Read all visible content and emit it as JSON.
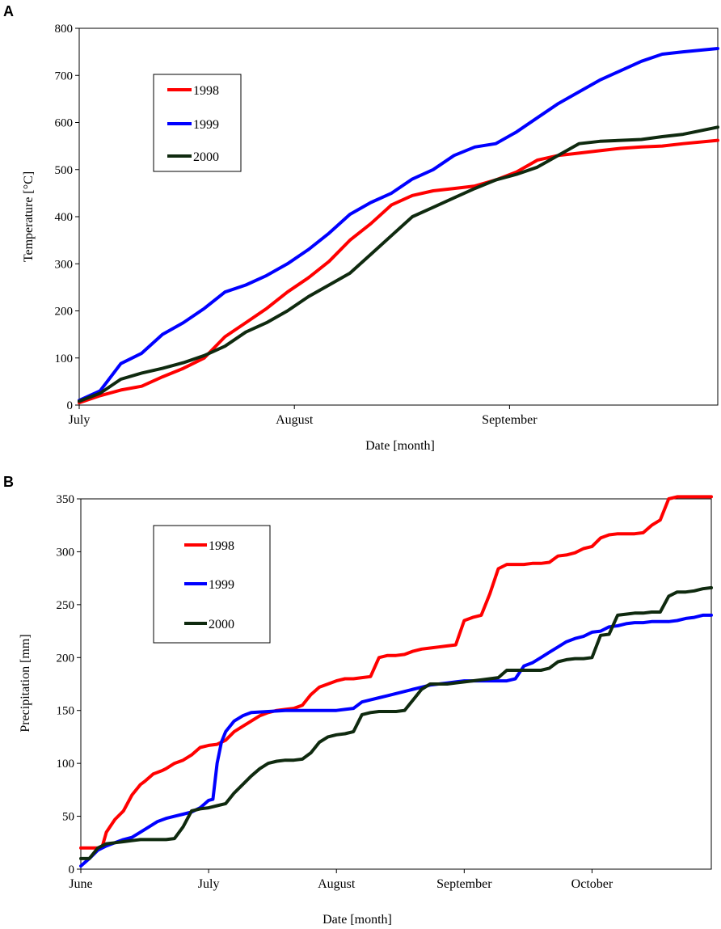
{
  "colors": {
    "1998": "#ff0000",
    "1999": "#0000ff",
    "2000": "#0f2a0f",
    "axis": "#000000"
  },
  "chart_data": [
    {
      "panel": "A",
      "type": "line",
      "xlabel": "Date [month]",
      "ylabel": "Temperature [°C]",
      "ylim": [
        0,
        800
      ],
      "yticks": [
        "0",
        "100",
        "200",
        "300",
        "400",
        "500",
        "600",
        "700",
        "800"
      ],
      "xlim": [
        0,
        92
      ],
      "xticks": [
        {
          "label": "July",
          "x": 0
        },
        {
          "label": "August",
          "x": 31
        },
        {
          "label": "September",
          "x": 62
        }
      ],
      "legend": [
        "1998",
        "1999",
        "2000"
      ],
      "series": [
        {
          "name": "1998",
          "x": [
            0,
            3,
            6,
            9,
            12,
            15,
            18,
            21,
            24,
            27,
            30,
            33,
            36,
            39,
            42,
            45,
            48,
            51,
            54,
            57,
            60,
            63,
            66,
            69,
            72,
            75,
            78,
            81,
            84,
            87,
            92
          ],
          "y": [
            5,
            20,
            32,
            40,
            60,
            78,
            100,
            145,
            175,
            205,
            240,
            270,
            305,
            350,
            385,
            425,
            445,
            455,
            460,
            465,
            478,
            495,
            520,
            530,
            535,
            540,
            545,
            548,
            550,
            555,
            562
          ]
        },
        {
          "name": "1999",
          "x": [
            0,
            3,
            6,
            9,
            12,
            15,
            18,
            21,
            24,
            27,
            30,
            33,
            36,
            39,
            42,
            45,
            48,
            51,
            54,
            57,
            60,
            63,
            66,
            69,
            72,
            75,
            78,
            81,
            84,
            87,
            92
          ],
          "y": [
            10,
            30,
            88,
            110,
            150,
            175,
            205,
            240,
            255,
            275,
            300,
            330,
            365,
            405,
            430,
            450,
            480,
            500,
            530,
            548,
            555,
            580,
            610,
            640,
            665,
            690,
            710,
            730,
            745,
            750,
            757
          ]
        },
        {
          "name": "2000",
          "x": [
            0,
            3,
            6,
            9,
            12,
            15,
            18,
            21,
            24,
            27,
            30,
            33,
            36,
            39,
            42,
            45,
            48,
            51,
            54,
            57,
            60,
            63,
            66,
            69,
            72,
            75,
            78,
            81,
            84,
            87,
            92
          ],
          "y": [
            8,
            25,
            55,
            68,
            78,
            90,
            105,
            125,
            155,
            175,
            200,
            230,
            255,
            280,
            320,
            360,
            400,
            420,
            440,
            460,
            478,
            490,
            505,
            530,
            555,
            560,
            562,
            564,
            570,
            575,
            590
          ]
        }
      ]
    },
    {
      "panel": "B",
      "type": "line",
      "xlabel": "Date [month]",
      "ylabel": "Precipitation [mm]",
      "ylim": [
        0,
        350
      ],
      "yticks": [
        "0",
        "50",
        "100",
        "150",
        "200",
        "250",
        "300",
        "350"
      ],
      "xlim": [
        0,
        148
      ],
      "xticks": [
        {
          "label": "June",
          "x": 0
        },
        {
          "label": "July",
          "x": 30
        },
        {
          "label": "August",
          "x": 60
        },
        {
          "label": "September",
          "x": 90
        },
        {
          "label": "October",
          "x": 120
        }
      ],
      "legend": [
        "1998",
        "1999",
        "2000"
      ],
      "series": [
        {
          "name": "1998",
          "x": [
            0,
            4,
            5,
            6,
            8,
            10,
            12,
            14,
            15,
            17,
            19,
            20,
            22,
            24,
            26,
            28,
            30,
            32,
            34,
            36,
            38,
            40,
            42,
            44,
            46,
            48,
            50,
            52,
            54,
            56,
            58,
            60,
            62,
            64,
            66,
            68,
            70,
            72,
            74,
            76,
            78,
            80,
            82,
            84,
            86,
            88,
            90,
            92,
            94,
            96,
            98,
            100,
            102,
            104,
            106,
            108,
            110,
            112,
            114,
            116,
            118,
            120,
            122,
            124,
            126,
            128,
            130,
            132,
            134,
            136,
            138,
            140,
            142,
            144,
            146,
            148
          ],
          "y": [
            20,
            20,
            21,
            35,
            47,
            55,
            70,
            80,
            83,
            90,
            93,
            95,
            100,
            103,
            108,
            115,
            117,
            118,
            122,
            130,
            135,
            140,
            145,
            148,
            150,
            151,
            152,
            155,
            165,
            172,
            175,
            178,
            180,
            180,
            181,
            182,
            200,
            202,
            202,
            203,
            206,
            208,
            209,
            210,
            211,
            212,
            235,
            238,
            240,
            260,
            284,
            288,
            288,
            288,
            289,
            289,
            290,
            296,
            297,
            299,
            303,
            305,
            313,
            316,
            317,
            317,
            317,
            318,
            325,
            330,
            350,
            352,
            352,
            352,
            352,
            352
          ]
        },
        {
          "name": "1999",
          "x": [
            0,
            2,
            4,
            6,
            8,
            10,
            12,
            14,
            16,
            18,
            20,
            22,
            24,
            26,
            28,
            30,
            31,
            32,
            33,
            34,
            36,
            38,
            40,
            44,
            48,
            52,
            56,
            60,
            62,
            64,
            66,
            68,
            70,
            72,
            74,
            76,
            78,
            80,
            82,
            84,
            86,
            88,
            90,
            92,
            94,
            96,
            98,
            100,
            102,
            104,
            106,
            108,
            110,
            112,
            114,
            116,
            118,
            120,
            122,
            124,
            126,
            128,
            130,
            132,
            134,
            136,
            138,
            140,
            142,
            144,
            146,
            148
          ],
          "y": [
            3,
            10,
            18,
            22,
            25,
            28,
            30,
            35,
            40,
            45,
            48,
            50,
            52,
            54,
            58,
            65,
            66,
            100,
            120,
            130,
            140,
            145,
            148,
            149,
            150,
            150,
            150,
            150,
            151,
            152,
            158,
            160,
            162,
            164,
            166,
            168,
            170,
            172,
            174,
            175,
            176,
            177,
            178,
            178,
            178,
            178,
            178,
            178,
            180,
            192,
            195,
            200,
            205,
            210,
            215,
            218,
            220,
            224,
            225,
            229,
            230,
            232,
            233,
            233,
            234,
            234,
            234,
            235,
            237,
            238,
            240,
            240
          ]
        },
        {
          "name": "2000",
          "x": [
            0,
            2,
            4,
            6,
            8,
            10,
            12,
            14,
            16,
            18,
            20,
            22,
            24,
            26,
            28,
            30,
            32,
            34,
            36,
            38,
            40,
            42,
            44,
            46,
            48,
            50,
            52,
            54,
            56,
            58,
            60,
            62,
            64,
            66,
            68,
            70,
            72,
            74,
            76,
            78,
            80,
            82,
            84,
            86,
            88,
            90,
            92,
            94,
            96,
            98,
            100,
            102,
            104,
            106,
            108,
            110,
            112,
            114,
            116,
            118,
            120,
            122,
            124,
            126,
            128,
            130,
            132,
            134,
            136,
            138,
            140,
            142,
            144,
            146,
            148
          ],
          "y": [
            10,
            10,
            20,
            24,
            25,
            26,
            27,
            28,
            28,
            28,
            28,
            29,
            40,
            55,
            57,
            58,
            60,
            62,
            72,
            80,
            88,
            95,
            100,
            102,
            103,
            103,
            104,
            110,
            120,
            125,
            127,
            128,
            130,
            146,
            148,
            149,
            149,
            149,
            150,
            160,
            170,
            175,
            175,
            175,
            176,
            177,
            178,
            179,
            180,
            181,
            188,
            188,
            188,
            188,
            188,
            190,
            196,
            198,
            199,
            199,
            200,
            221,
            222,
            240,
            241,
            242,
            242,
            243,
            243,
            258,
            262,
            262,
            263,
            265,
            266
          ]
        }
      ]
    }
  ]
}
